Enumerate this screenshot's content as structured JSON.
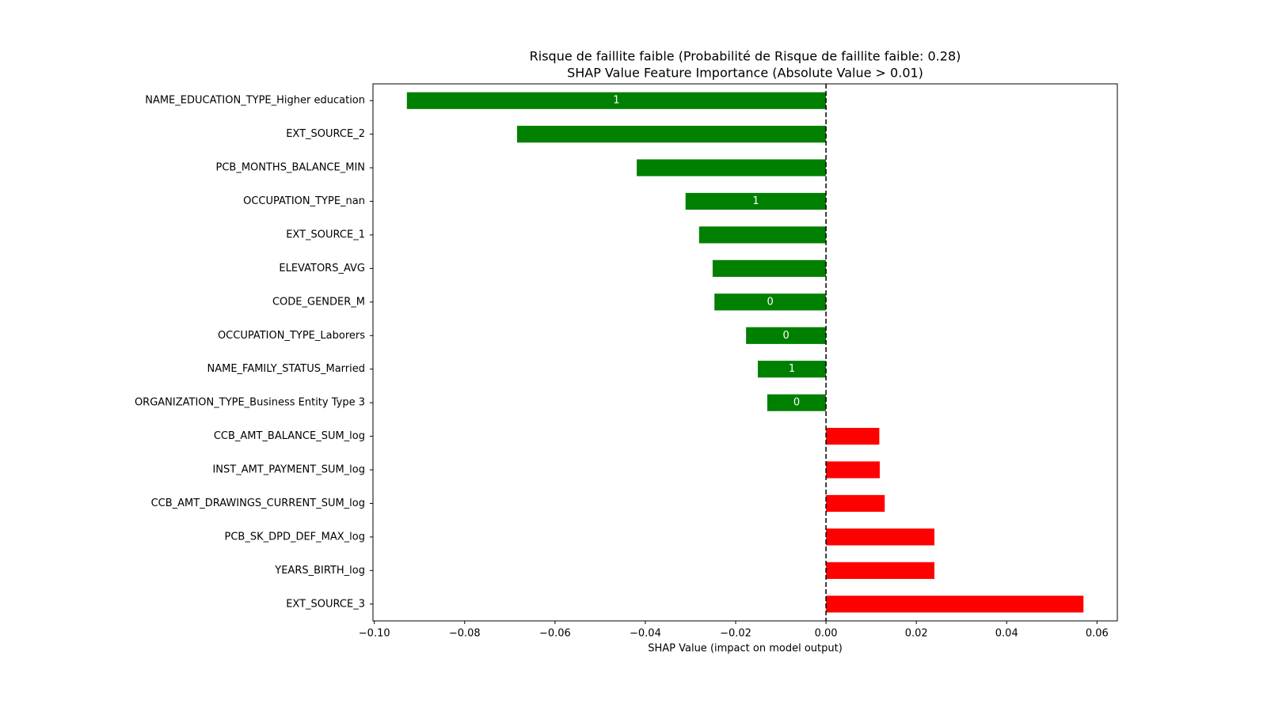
{
  "chart_data": {
    "type": "barh",
    "title": "Risque de faillite faible (Probabilité de Risque de faillite faible: 0.28)",
    "subtitle": "SHAP Value Feature Importance (Absolute Value > 0.01)",
    "xlabel": "SHAP Value (impact on model output)",
    "categories": [
      "NAME_EDUCATION_TYPE_Higher education",
      "EXT_SOURCE_2",
      "PCB_MONTHS_BALANCE_MIN",
      "OCCUPATION_TYPE_nan",
      "EXT_SOURCE_1",
      "ELEVATORS_AVG",
      "CODE_GENDER_M",
      "OCCUPATION_TYPE_Laborers",
      "NAME_FAMILY_STATUS_Married",
      "ORGANIZATION_TYPE_Business Entity Type 3",
      "CCB_AMT_BALANCE_SUM_log",
      "INST_AMT_PAYMENT_SUM_log",
      "CCB_AMT_DRAWINGS_CURRENT_SUM_log",
      "PCB_SK_DPD_DEF_MAX_log",
      "YEARS_BIRTH_log",
      "EXT_SOURCE_3"
    ],
    "values": [
      -0.0928,
      -0.0684,
      -0.0419,
      -0.0311,
      -0.0281,
      -0.0251,
      -0.0247,
      -0.0177,
      -0.0151,
      -0.013,
      0.0118,
      0.0119,
      0.013,
      0.024,
      0.024,
      0.057
    ],
    "feature_values": [
      1,
      null,
      null,
      1,
      null,
      null,
      0,
      0,
      1,
      0,
      null,
      null,
      null,
      null,
      null,
      null
    ],
    "negative_color": "#008000",
    "positive_color": "#ff0000",
    "reference_line": 0,
    "xlim": [
      -0.1003,
      0.0645
    ],
    "xticks": [
      {
        "value": -0.1,
        "label": "−0.10"
      },
      {
        "value": -0.08,
        "label": "−0.08"
      },
      {
        "value": -0.06,
        "label": "−0.06"
      },
      {
        "value": -0.04,
        "label": "−0.04"
      },
      {
        "value": -0.02,
        "label": "−0.02"
      },
      {
        "value": 0,
        "label": "0.00"
      },
      {
        "value": 0.02,
        "label": "0.02"
      },
      {
        "value": 0.04,
        "label": "0.04"
      },
      {
        "value": 0.06,
        "label": "0.06"
      }
    ]
  }
}
